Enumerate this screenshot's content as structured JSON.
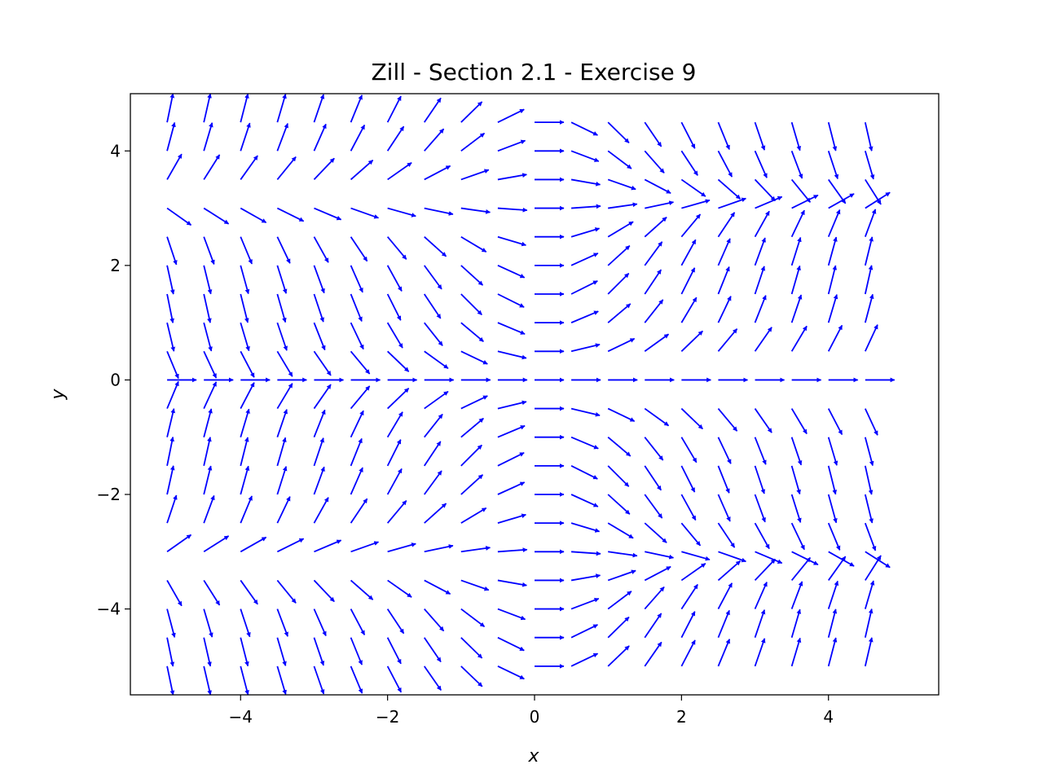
{
  "chart_data": {
    "type": "quiver",
    "title": "Zill - Section 2.1 -  Exercise 9",
    "xlabel": "x",
    "ylabel": "y",
    "xlim": [
      -5.5,
      5.5
    ],
    "ylim": [
      -5.5,
      5.0
    ],
    "x_ticks": [
      -4,
      -2,
      0,
      2,
      4
    ],
    "y_ticks": [
      -4,
      -2,
      0,
      2,
      4
    ],
    "x_tick_labels": [
      "−4",
      "−2",
      "0",
      "2",
      "4"
    ],
    "y_tick_labels": [
      "−4",
      "−2",
      "0",
      "2",
      "4"
    ],
    "field": "dy/dx = x sin(y)",
    "grid_x": {
      "start": -5,
      "stop": 4.5,
      "count": 20
    },
    "grid_y": {
      "start": -5,
      "stop": 4.5,
      "count": 20
    },
    "arrow_color": "#0000ff",
    "grid": false
  }
}
